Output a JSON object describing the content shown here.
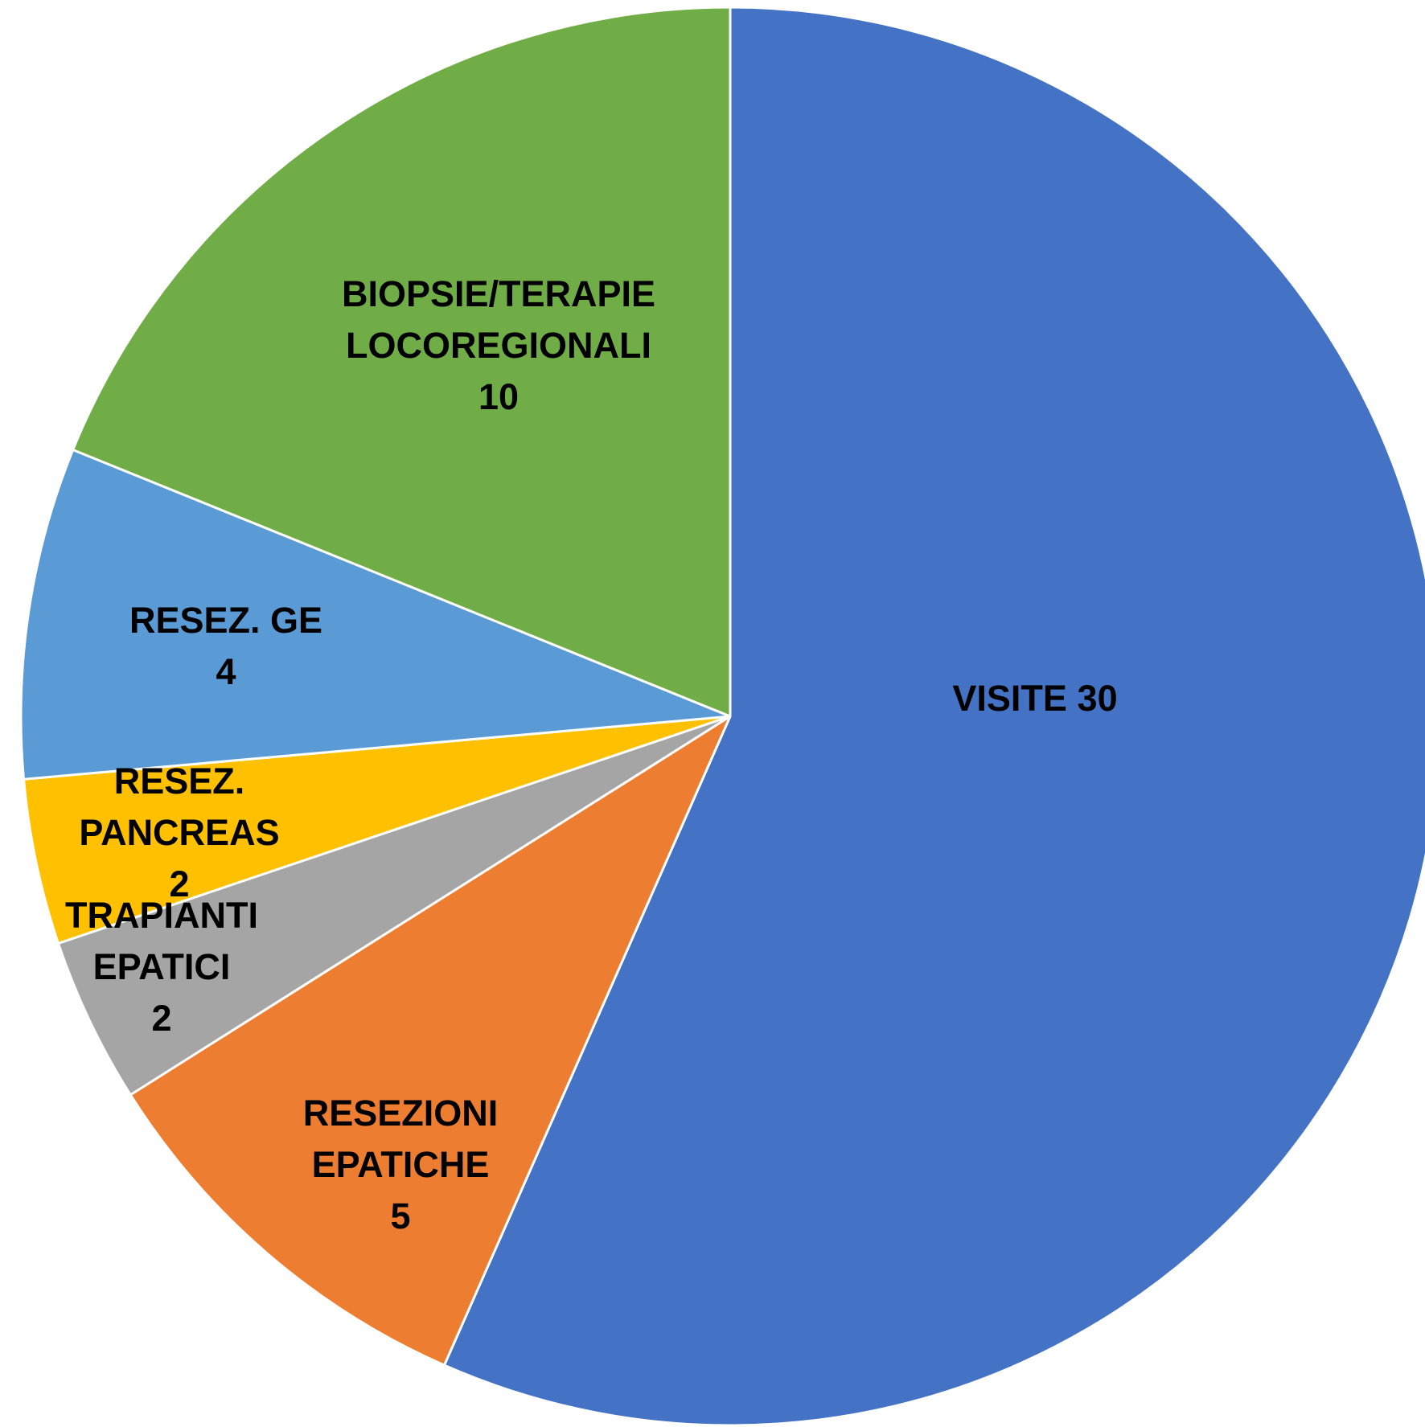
{
  "chart_data": {
    "type": "pie",
    "categories": [
      "VISITE",
      "RESEZIONI EPATICHE",
      "TRAPIANTI EPATICI",
      "RESEZ. PANCREAS",
      "RESEZ. GE",
      "BIOPSIE/TERAPIE LOCOREGIONALI"
    ],
    "values": [
      30,
      5,
      2,
      2,
      4,
      10
    ],
    "colors": [
      "#4472c4",
      "#ed7d31",
      "#a5a5a5",
      "#ffc000",
      "#5b9bd5",
      "#70ad47"
    ]
  }
}
